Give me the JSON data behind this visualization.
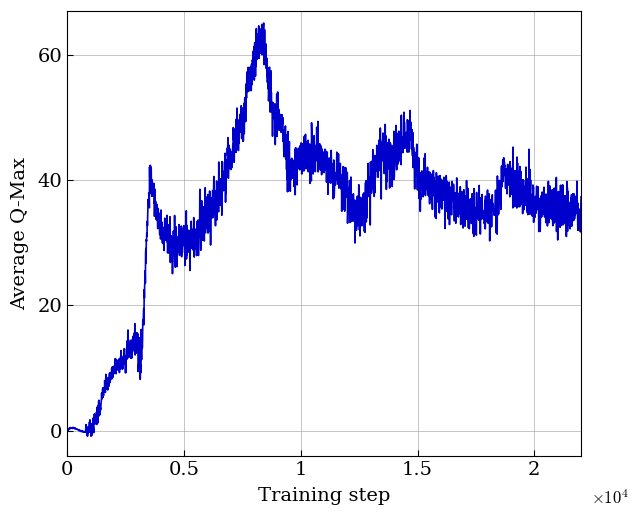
{
  "title": "",
  "xlabel": "Training step",
  "ylabel": "Average Q-Max",
  "line_color": "#0000CC",
  "line_width": 1.2,
  "xlim": [
    0,
    22000
  ],
  "ylim": [
    -4,
    67
  ],
  "xticks": [
    0,
    5000,
    10000,
    15000,
    20000
  ],
  "xtick_labels": [
    "0",
    "0.5",
    "1",
    "1.5",
    "2"
  ],
  "x_scale_label": "$\\times10^4$",
  "yticks": [
    0,
    20,
    40,
    60
  ],
  "grid": true,
  "background_color": "#ffffff",
  "figsize": [
    6.4,
    5.16
  ],
  "dpi": 100
}
